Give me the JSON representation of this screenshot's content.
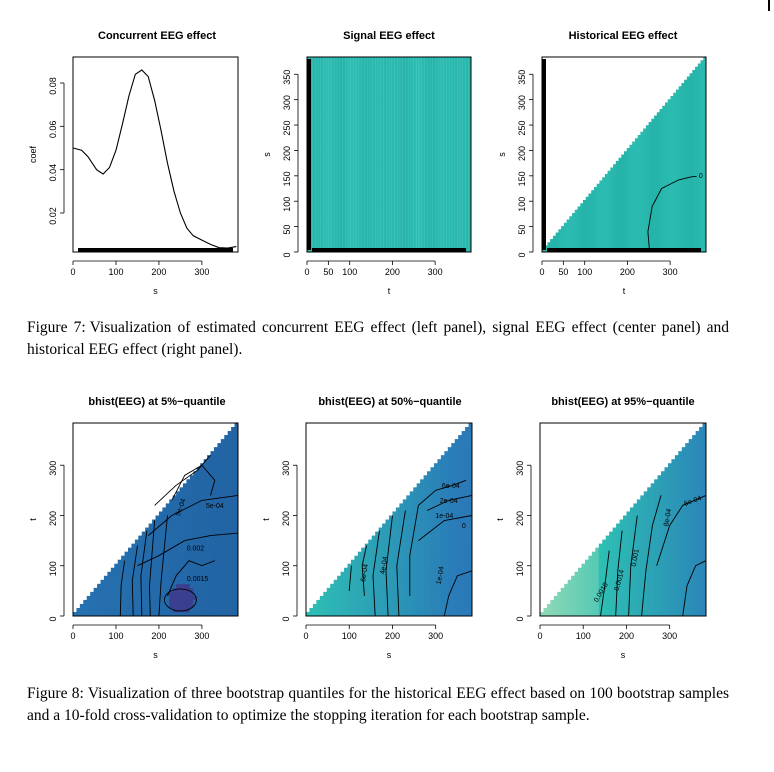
{
  "figure7": {
    "label": "Figure 7:",
    "caption": "Visualization of estimated concurrent EEG effect (left panel), signal EEG effect (center panel) and historical EEG effect (right panel)."
  },
  "figure8": {
    "label": "Figure 8:",
    "caption": "Visualization of three bootstrap quantiles for the historical EEG effect based on 100 bootstrap samples and a 10-fold cross-validation to optimize the stopping iteration for each bootstrap sample."
  },
  "colors": {
    "teal": "#2ebfb4",
    "teal_dark": "#1aa69d",
    "blue_dark": "#1f5d9e",
    "blue_mid": "#2a7ab8",
    "mint": "#8fd9b6"
  },
  "chart_data": [
    {
      "type": "line",
      "title": "Concurrent EEG effect",
      "xlabel": "s",
      "ylabel": "coef",
      "xticks": [
        "0",
        "100",
        "200",
        "300"
      ],
      "yticks": [
        "0.02",
        "0.04",
        "0.06",
        "0.08"
      ],
      "xlim": [
        0,
        384
      ],
      "ylim": [
        0.002,
        0.092
      ],
      "series": [
        {
          "x": [
            0,
            20,
            35,
            55,
            70,
            85,
            100,
            115,
            130,
            145,
            160,
            175,
            190,
            205,
            220,
            235,
            250,
            265,
            280,
            300,
            320,
            340,
            360,
            380
          ],
          "values": [
            0.05,
            0.049,
            0.046,
            0.04,
            0.038,
            0.041,
            0.049,
            0.061,
            0.074,
            0.084,
            0.086,
            0.083,
            0.072,
            0.058,
            0.043,
            0.03,
            0.02,
            0.013,
            0.0095,
            0.0075,
            0.0055,
            0.004,
            0.0038,
            0.0045
          ]
        }
      ]
    },
    {
      "type": "heatmap",
      "title": "Signal EEG effect",
      "xlabel": "t",
      "ylabel": "s",
      "xticks": [
        "0",
        "50",
        "100",
        "200",
        "300"
      ],
      "yticks": [
        "0",
        "50",
        "100",
        "150",
        "200",
        "250",
        "300",
        "350"
      ],
      "xlim": [
        0,
        384
      ],
      "ylim": [
        0,
        384
      ]
    },
    {
      "type": "heatmap",
      "title": "Historical EEG effect",
      "xlabel": "t",
      "ylabel": "s",
      "xticks": [
        "0",
        "50",
        "100",
        "200",
        "300"
      ],
      "yticks": [
        "0",
        "50",
        "100",
        "150",
        "200",
        "250",
        "300",
        "350"
      ],
      "xlim": [
        0,
        384
      ],
      "ylim": [
        0,
        384
      ],
      "contour_labels": [
        "0"
      ]
    },
    {
      "type": "heatmap",
      "title": "bhist(EEG) at 5%−quantile",
      "xlabel": "s",
      "ylabel": "t",
      "xticks": [
        "0",
        "100",
        "200",
        "300"
      ],
      "yticks": [
        "0",
        "100",
        "200",
        "300"
      ],
      "xlim": [
        0,
        384
      ],
      "ylim": [
        0,
        384
      ],
      "contour_labels": [
        "5e-04",
        "5e-04",
        "0.002",
        "0.0015"
      ]
    },
    {
      "type": "heatmap",
      "title": "bhist(EEG) at 50%−quantile",
      "xlabel": "s",
      "ylabel": "t",
      "xticks": [
        "0",
        "100",
        "200",
        "300"
      ],
      "yticks": [
        "0",
        "100",
        "200",
        "300"
      ],
      "xlim": [
        0,
        384
      ],
      "ylim": [
        0,
        384
      ],
      "contour_labels": [
        "6e-04",
        "2e-04",
        "1e-04",
        "0",
        "1e-04",
        "6e-04",
        "4e-04"
      ]
    },
    {
      "type": "heatmap",
      "title": "bhist(EEG) at 95%−quantile",
      "xlabel": "s",
      "ylabel": "t",
      "xticks": [
        "0",
        "100",
        "200",
        "300"
      ],
      "yticks": [
        "0",
        "100",
        "200",
        "300"
      ],
      "xlim": [
        0,
        384
      ],
      "ylim": [
        0,
        384
      ],
      "contour_labels": [
        "6e-04",
        "0.0018",
        "0.0014",
        "0.001",
        "8e-04"
      ]
    }
  ]
}
